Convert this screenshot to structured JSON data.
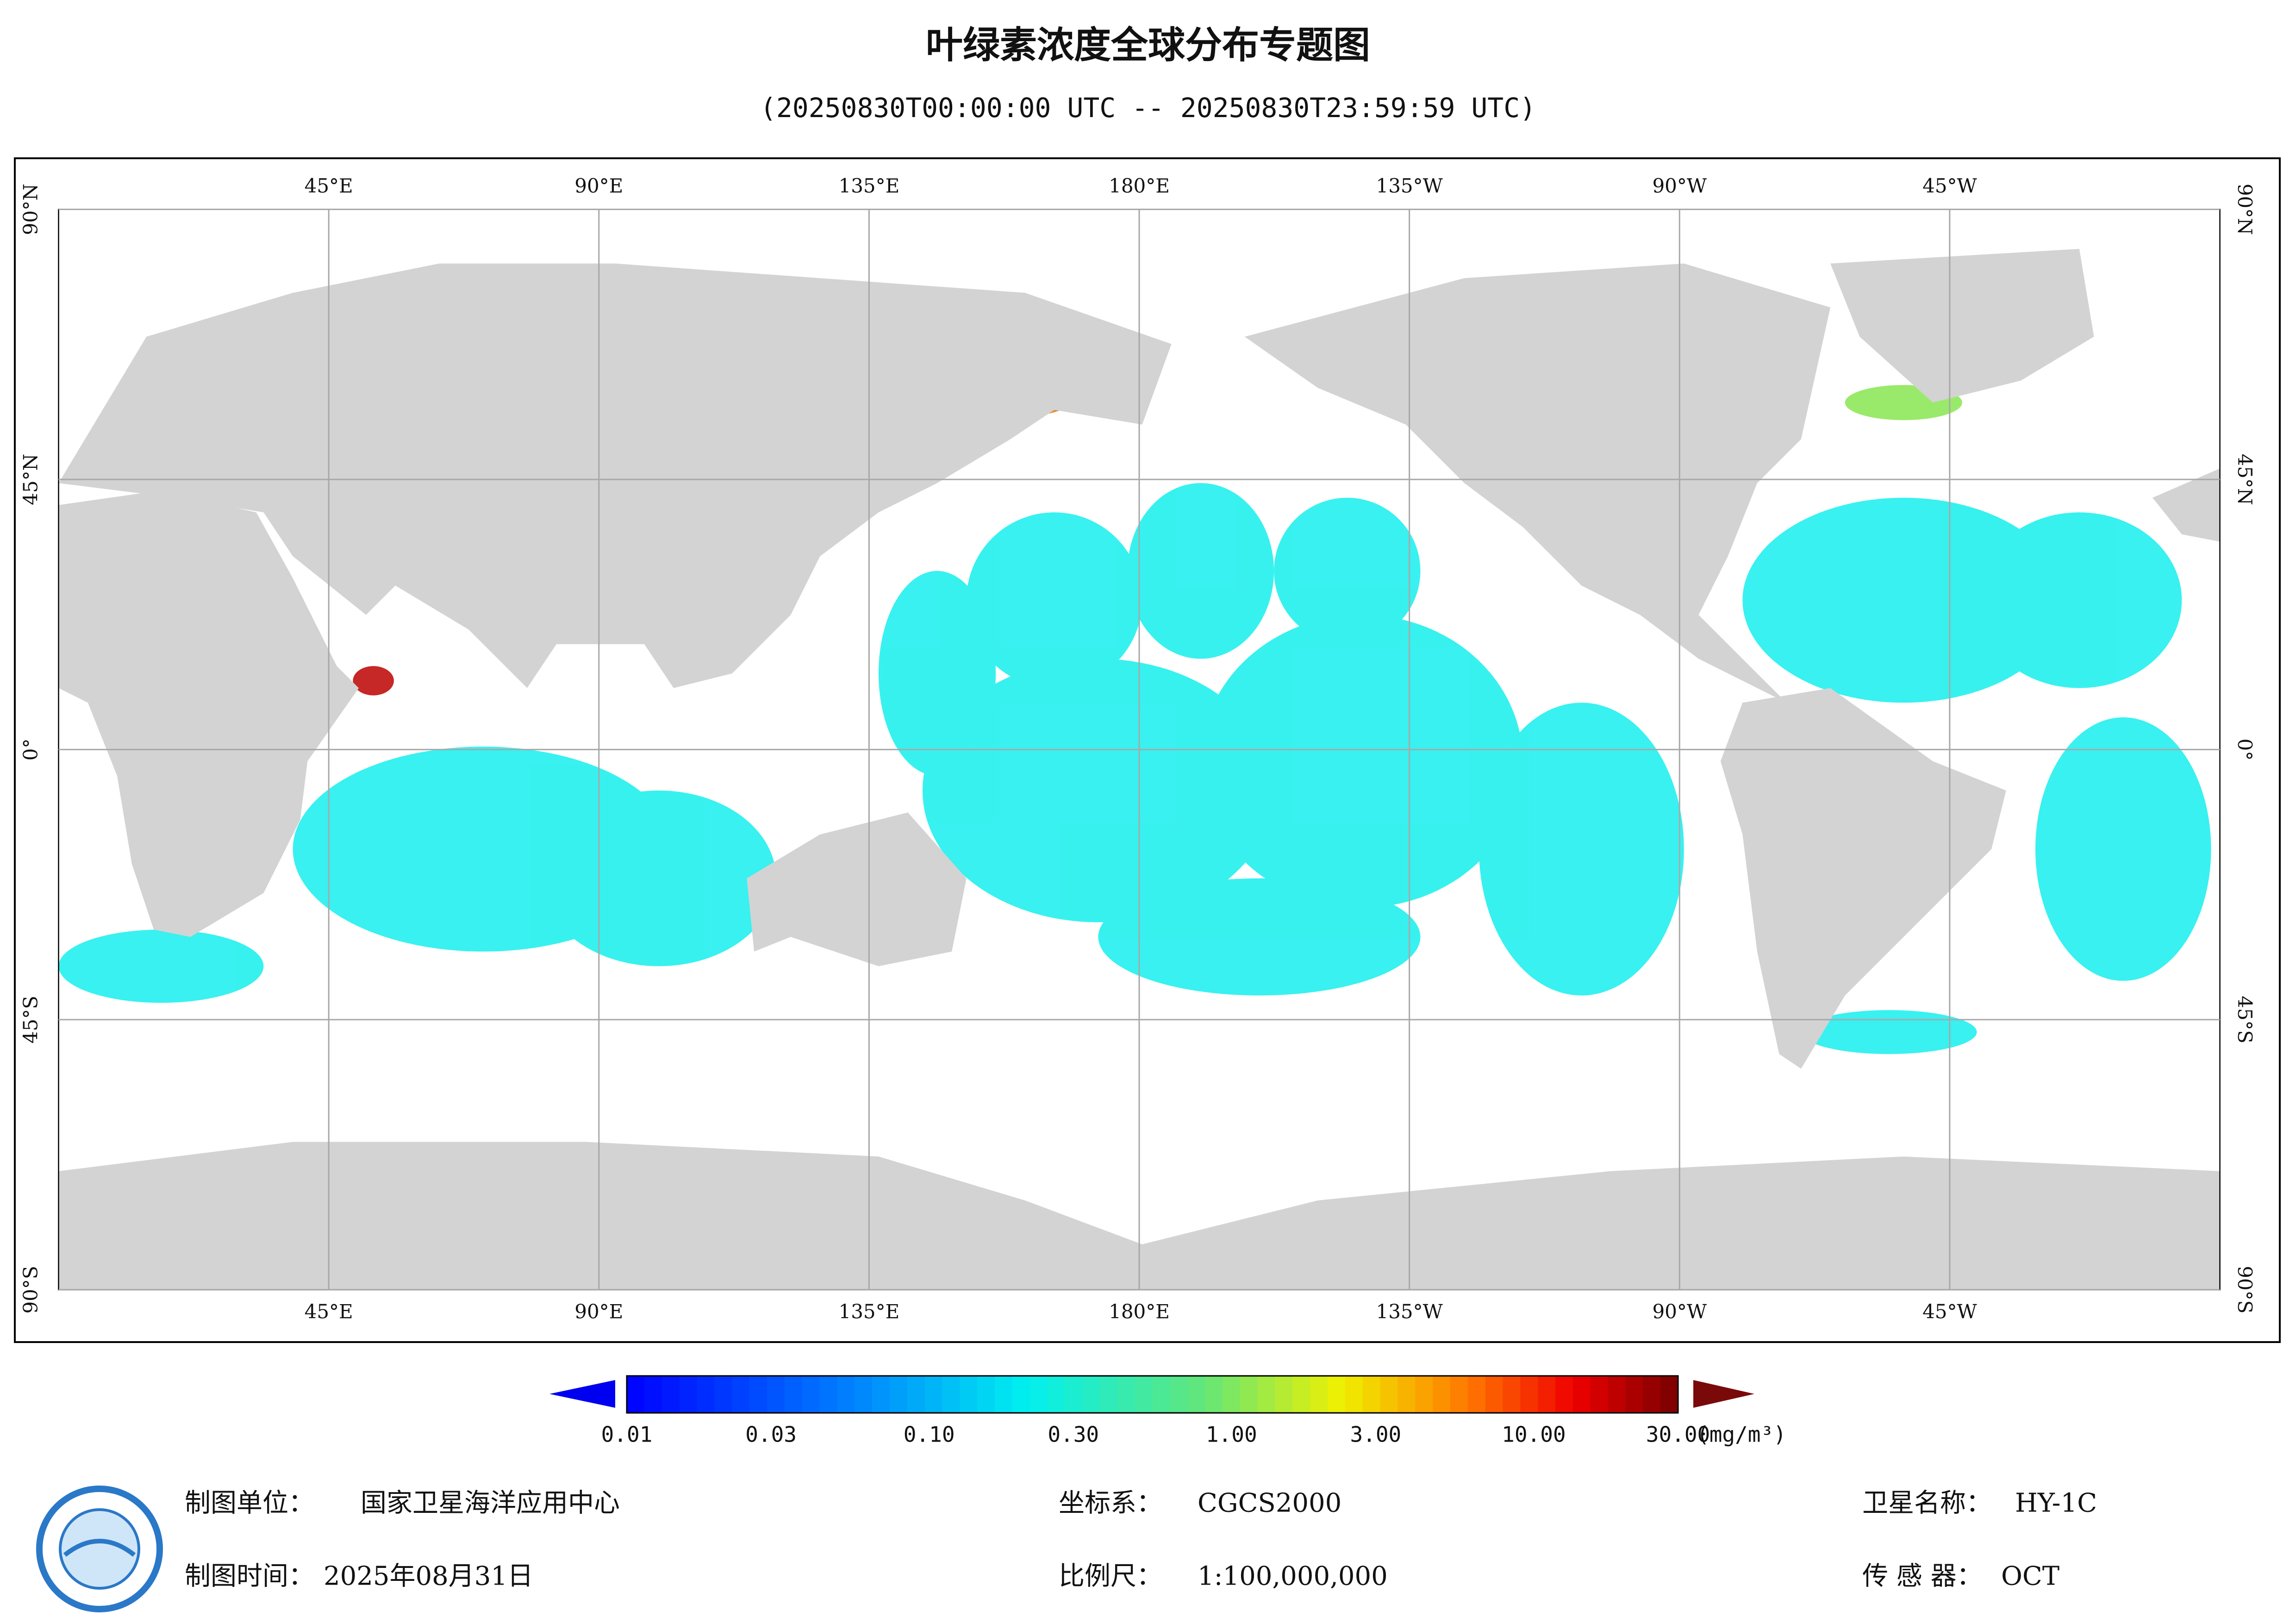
{
  "title": "叶绿素浓度全球分布专题图",
  "subtitle": "(20250830T00:00:00 UTC -- 20250830T23:59:59 UTC)",
  "map": {
    "lonlim": [
      0,
      360
    ],
    "latlim": [
      -90,
      90
    ],
    "lon_ticks": [
      {
        "value": 45,
        "label": "45°E"
      },
      {
        "value": 90,
        "label": "90°E"
      },
      {
        "value": 135,
        "label": "135°E"
      },
      {
        "value": 180,
        "label": "180°E"
      },
      {
        "value": -135,
        "label": "135°W"
      },
      {
        "value": -90,
        "label": "90°W"
      },
      {
        "value": -45,
        "label": "45°W"
      }
    ],
    "lat_ticks": [
      {
        "value": 90,
        "label": "90°N"
      },
      {
        "value": 45,
        "label": "45°N"
      },
      {
        "value": 0,
        "label": "0°"
      },
      {
        "value": -45,
        "label": "45°S"
      },
      {
        "value": -90,
        "label": "90°S"
      }
    ],
    "grid": true
  },
  "colorbar": {
    "scale": "log",
    "lim": [
      0.01,
      30
    ],
    "ticks": [
      {
        "value": 0.01,
        "label": "0.01"
      },
      {
        "value": 0.03,
        "label": "0.03"
      },
      {
        "value": 0.1,
        "label": "0.10"
      },
      {
        "value": 0.3,
        "label": "0.30"
      },
      {
        "value": 1,
        "label": "1.00"
      },
      {
        "value": 3,
        "label": "3.00"
      },
      {
        "value": 10,
        "label": "10.00"
      },
      {
        "value": 30,
        "label": "30.00"
      }
    ],
    "unit": "(mg/m³)"
  },
  "footer": {
    "org": {
      "label": "制图单位：",
      "value": "国家卫星海洋应用中心"
    },
    "crs": {
      "label": "坐标系：",
      "value": "CGCS2000"
    },
    "satellite": {
      "label": "卫星名称：",
      "value": "HY-1C"
    },
    "date": {
      "label": "制图时间：",
      "value": "2025年08月31日"
    },
    "scale": {
      "label": "比例尺：",
      "value": "1:100,000,000"
    },
    "sensor": {
      "label": "传 感 器：",
      "value": "OCT"
    }
  }
}
